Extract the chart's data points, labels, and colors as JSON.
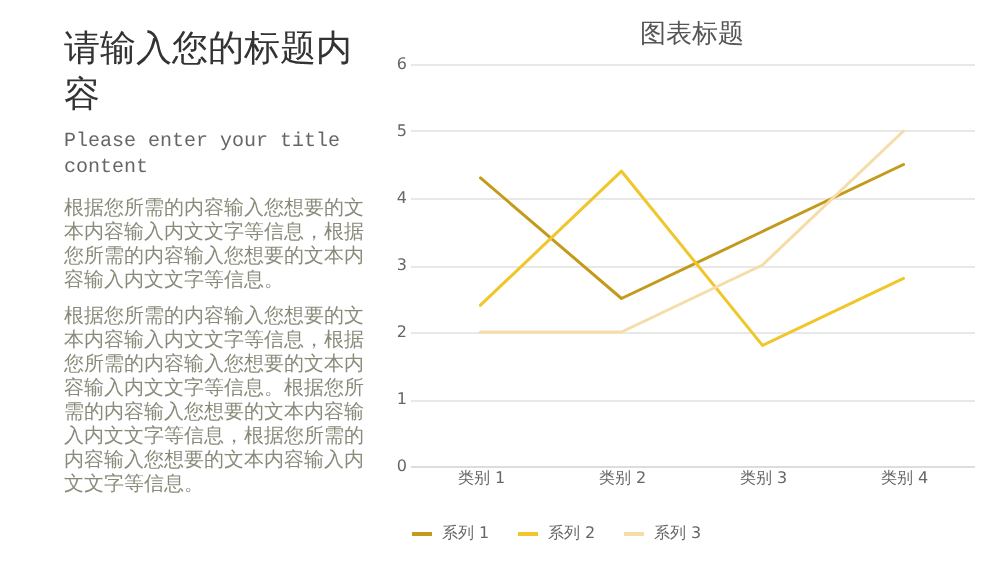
{
  "chart_data": [
    {
      "type": "other",
      "title": "请输入您的标题内容",
      "subtitle": "Please enter your title content",
      "annotations": [
        "根据您所需的内容输入您想要的文本内容输入内文文字等信息，根据您所需的内容输入您想要的文本内容输入内文文字等信息。",
        "根据您所需的内容输入您想要的文本内容输入内文文字等信息，根据您所需的内容输入您想要的文本内容输入内文文字等信息。根据您所需的内容输入您想要的文本内容输入内文文字等信息，根据您所需的内容输入您想要的文本内容输入内文文字等信息。"
      ]
    },
    {
      "type": "line",
      "title": "图表标题",
      "categories": [
        "类别 1",
        "类别 2",
        "类别 3",
        "类别 4"
      ],
      "series": [
        {
          "name": "系列 1",
          "color": "#c49a1c",
          "values": [
            4.3,
            2.5,
            3.5,
            4.5
          ]
        },
        {
          "name": "系列 2",
          "color": "#f0c62a",
          "values": [
            2.4,
            4.4,
            1.8,
            2.8
          ]
        },
        {
          "name": "系列 3",
          "color": "#f6dca6",
          "values": [
            2,
            2,
            3,
            5
          ]
        }
      ],
      "ylim": [
        0,
        6
      ],
      "yticks": [
        0,
        1,
        2,
        3,
        4,
        5,
        6
      ],
      "grid": "y",
      "legend": "bottom",
      "line_style": "solid"
    }
  ]
}
